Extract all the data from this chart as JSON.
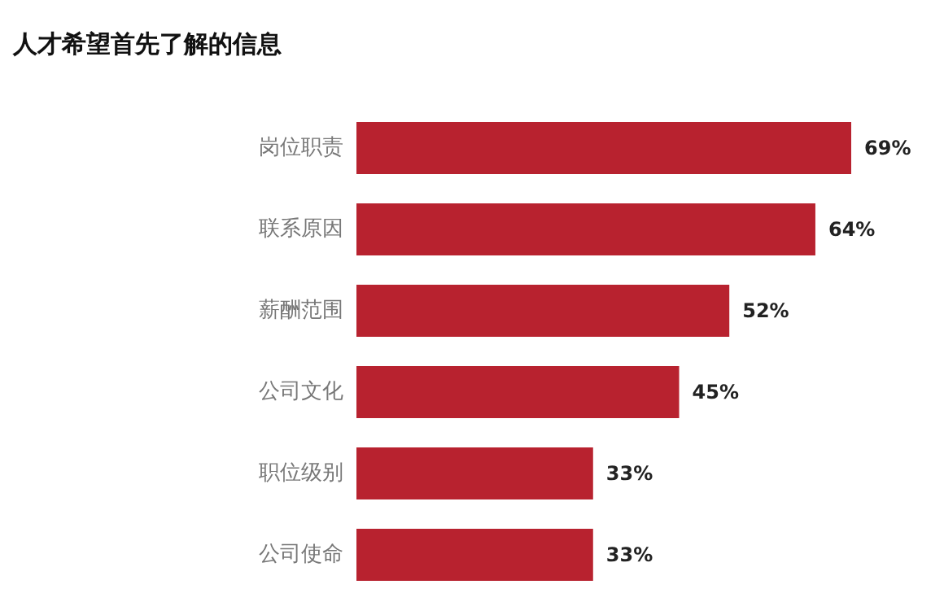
{
  "chart_data": {
    "type": "bar",
    "orientation": "horizontal",
    "title": "人才希望首先了解的信息",
    "categories": [
      "岗位职责",
      "联系原因",
      "薪酬范围",
      "公司文化",
      "职位级别",
      "公司使命"
    ],
    "values": [
      69,
      64,
      52,
      45,
      33,
      33
    ],
    "value_labels": [
      "69%",
      "64%",
      "52%",
      "45%",
      "33%",
      "33%"
    ],
    "color": "#b8222f"
  }
}
